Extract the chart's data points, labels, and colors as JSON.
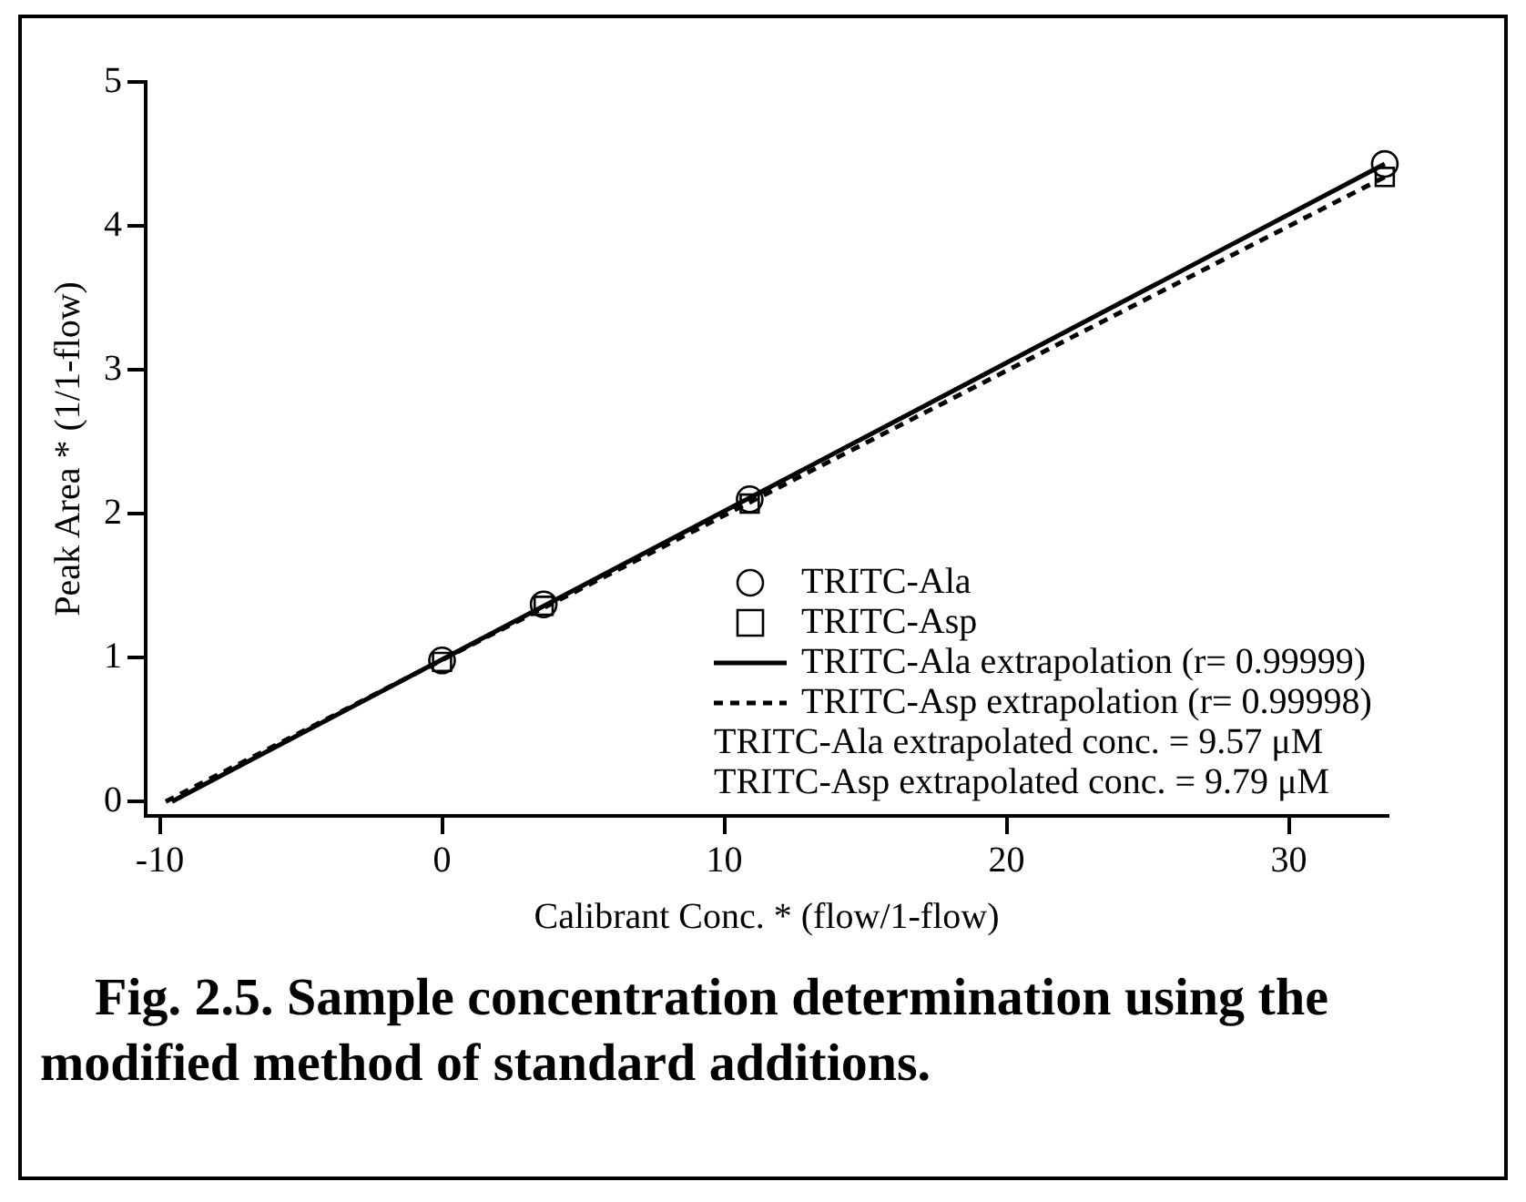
{
  "chart_data": {
    "type": "scatter",
    "xlabel": "Calibrant Conc. * (flow/1-flow)",
    "ylabel": "Peak Area * (1/1-flow)",
    "xlim": [
      -10.5,
      33.5
    ],
    "xticks": [
      -10,
      0,
      10,
      20,
      30
    ],
    "ylim": [
      -0.1,
      5
    ],
    "yticks": [
      0,
      1,
      2,
      3,
      4,
      5
    ],
    "grid": false,
    "legend": "bottom right",
    "series": [
      {
        "name": "TRITC-Ala",
        "type": "scatter",
        "color": "#000000",
        "marker": "circle",
        "x": [
          0,
          3.6,
          10.9,
          33.4
        ],
        "values": [
          0.98,
          1.37,
          2.1,
          4.43
        ]
      },
      {
        "name": "TRITC-Asp",
        "type": "scatter",
        "color": "#000000",
        "marker": "square",
        "x": [
          0,
          3.6,
          10.9,
          33.4
        ],
        "values": [
          0.97,
          1.36,
          2.07,
          4.34
        ]
      },
      {
        "name": "TRITC-Ala extrapolation (r= 0.99999)",
        "type": "line",
        "color": "#000000",
        "marker": "none",
        "line_style": "solid",
        "x": [
          -9.57,
          33.4
        ],
        "values": [
          0,
          4.43
        ]
      },
      {
        "name": "TRITC-Asp extrapolation (r= 0.99998)",
        "type": "line",
        "color": "#000000",
        "marker": "none",
        "line_style": "dashed",
        "x": [
          -9.79,
          33.4
        ],
        "values": [
          0,
          4.34
        ]
      }
    ],
    "annotations": [
      "TRITC-Ala extrapolated conc. = 9.57 μM",
      "TRITC-Asp extrapolated conc. = 9.79 μM",
      "Fig. 2.5. Sample concentration determination using the modified method of standard additions."
    ]
  }
}
